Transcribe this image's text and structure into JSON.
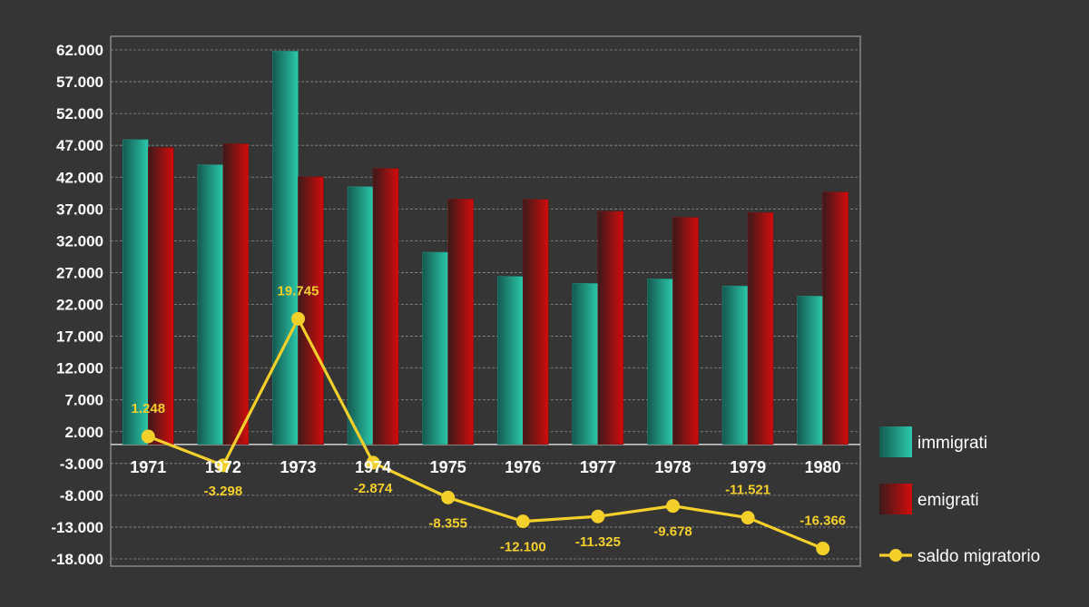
{
  "chart_data": {
    "type": "bar",
    "categories": [
      "1971",
      "1972",
      "1973",
      "1974",
      "1975",
      "1976",
      "1977",
      "1978",
      "1979",
      "1980"
    ],
    "series": [
      {
        "name": "immigrati",
        "kind": "bar",
        "color": "#2bbfa3",
        "values": [
          47900,
          43950,
          61800,
          40500,
          30200,
          26400,
          25300,
          26000,
          24900,
          23300
        ]
      },
      {
        "name": "emigrati",
        "kind": "bar",
        "color": "#c20d0d",
        "values": [
          46652,
          47248,
          42055,
          43374,
          38555,
          38500,
          36625,
          35678,
          36421,
          39666
        ]
      },
      {
        "name": "saldo migratorio",
        "kind": "line",
        "color": "#f5cf2a",
        "values": [
          1248,
          -3298,
          19745,
          -2874,
          -8355,
          -12100,
          -11325,
          -9678,
          -11521,
          -16366
        ],
        "labels": [
          "1.248",
          "-3.298",
          "19.745",
          "-2.874",
          "-8.355",
          "-12.100",
          "-11.325",
          "-9.678",
          "-11.521",
          "-16.366"
        ]
      }
    ],
    "y_ticks": [
      62000,
      57000,
      52000,
      47000,
      42000,
      37000,
      32000,
      27000,
      22000,
      17000,
      12000,
      7000,
      2000,
      -3000,
      -8000,
      -13000,
      -18000
    ],
    "y_tick_labels": [
      "62.000",
      "57.000",
      "52.000",
      "47.000",
      "42.000",
      "37.000",
      "32.000",
      "27.000",
      "22.000",
      "17.000",
      "12.000",
      "7.000",
      "2.000",
      "-3.000",
      "-8.000",
      "-13.000",
      "-18.000"
    ],
    "ylim": [
      -18000,
      62000
    ],
    "grid": true,
    "legend_position": "right",
    "title": "",
    "xlabel": "",
    "ylabel": ""
  }
}
